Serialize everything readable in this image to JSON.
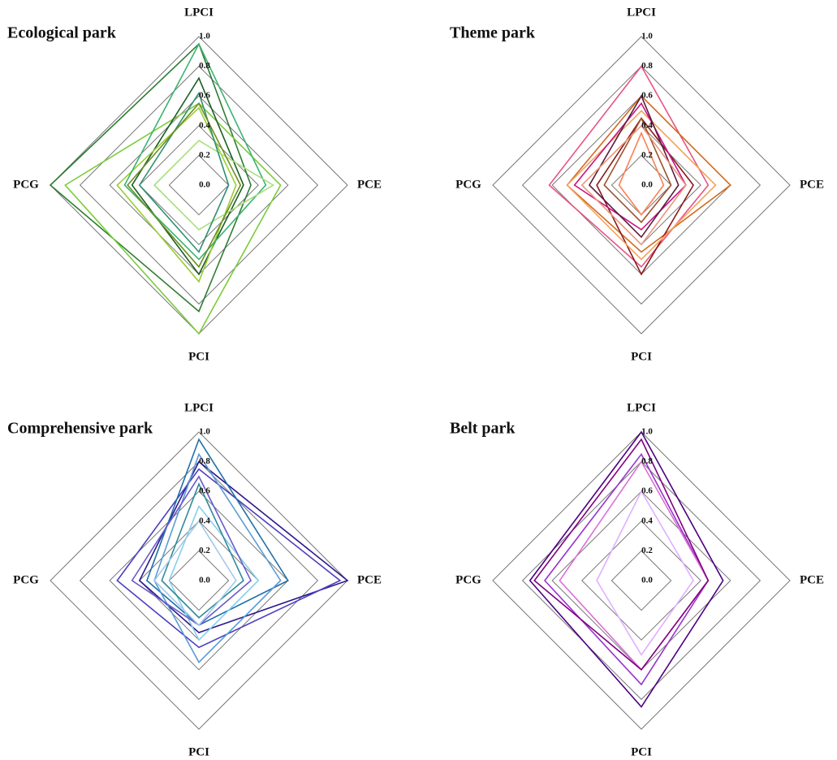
{
  "chart_data": [
    {
      "type": "radar",
      "title": "Ecological park",
      "categories": [
        "LPCI",
        "PCE",
        "PCI",
        "PCG"
      ],
      "rlim": [
        0,
        1
      ],
      "rticks": [
        {
          "value": 0,
          "label": "0.0"
        },
        0.2,
        0.4,
        0.6,
        0.8,
        {
          "value": 1,
          "label": "1.0"
        }
      ],
      "grid": true,
      "series": [
        {
          "color": "#2e7d32",
          "values": [
            0.95,
            0.35,
            0.85,
            1.0
          ]
        },
        {
          "color": "#7ccc3a",
          "values": [
            0.55,
            0.55,
            1.0,
            0.9
          ]
        },
        {
          "color": "#1b5e20",
          "values": [
            0.72,
            0.3,
            0.6,
            0.45
          ]
        },
        {
          "color": "#9acd32",
          "values": [
            0.52,
            0.25,
            0.65,
            0.55
          ]
        },
        {
          "color": "#3cb371",
          "values": [
            0.95,
            0.45,
            0.5,
            0.5
          ]
        },
        {
          "color": "#a6e07a",
          "values": [
            0.3,
            0.5,
            0.3,
            0.3
          ]
        },
        {
          "color": "#2f8f6f",
          "values": [
            0.62,
            0.2,
            0.45,
            0.4
          ]
        },
        {
          "color": "#6b8e23",
          "values": [
            0.55,
            0.28,
            0.55,
            0.48
          ]
        }
      ]
    },
    {
      "type": "radar",
      "title": "Theme park",
      "categories": [
        "LPCI",
        "PCE",
        "PCI",
        "PCG"
      ],
      "rlim": [
        0,
        1
      ],
      "rticks": [
        {
          "value": 0,
          "label": "0.0"
        },
        0.2,
        0.4,
        0.6,
        0.8,
        {
          "value": 1,
          "label": "1.0"
        }
      ],
      "grid": true,
      "series": [
        {
          "color": "#e75480",
          "values": [
            0.8,
            0.45,
            0.55,
            0.62
          ]
        },
        {
          "color": "#d2691e",
          "values": [
            0.6,
            0.6,
            0.45,
            0.5
          ]
        },
        {
          "color": "#8b1a1a",
          "values": [
            0.45,
            0.35,
            0.6,
            0.3
          ]
        },
        {
          "color": "#f4a460",
          "values": [
            0.5,
            0.5,
            0.5,
            0.5
          ]
        },
        {
          "color": "#c71585",
          "values": [
            0.55,
            0.3,
            0.3,
            0.45
          ]
        },
        {
          "color": "#a0522d",
          "values": [
            0.45,
            0.2,
            0.25,
            0.25
          ]
        },
        {
          "color": "#ff7f50",
          "values": [
            0.35,
            0.15,
            0.2,
            0.15
          ]
        },
        {
          "color": "#5a1e3c",
          "values": [
            0.6,
            0.25,
            0.35,
            0.35
          ]
        },
        {
          "color": "#e9967a",
          "values": [
            0.4,
            0.3,
            0.4,
            0.4
          ]
        }
      ]
    },
    {
      "type": "radar",
      "title": "Comprehensive park",
      "categories": [
        "LPCI",
        "PCE",
        "PCI",
        "PCG"
      ],
      "rlim": [
        0,
        1
      ],
      "rticks": [
        {
          "value": 0,
          "label": "0.0"
        },
        0.2,
        0.4,
        0.6,
        0.8,
        {
          "value": 1,
          "label": "1.0"
        }
      ],
      "grid": true,
      "series": [
        {
          "color": "#2b1a8c",
          "values": [
            0.8,
            1.0,
            0.35,
            0.4
          ]
        },
        {
          "color": "#4b3fbf",
          "values": [
            0.75,
            0.95,
            0.45,
            0.55
          ]
        },
        {
          "color": "#1f6fa8",
          "values": [
            0.95,
            0.6,
            0.3,
            0.35
          ]
        },
        {
          "color": "#5b9bd5",
          "values": [
            0.85,
            0.55,
            0.55,
            0.3
          ]
        },
        {
          "color": "#87ceeb",
          "values": [
            0.5,
            0.4,
            0.4,
            0.2
          ]
        },
        {
          "color": "#2e8b9a",
          "values": [
            0.65,
            0.3,
            0.25,
            0.25
          ]
        },
        {
          "color": "#6a5acd",
          "values": [
            0.7,
            0.35,
            0.3,
            0.45
          ]
        },
        {
          "color": "#a4c8e8",
          "values": [
            0.4,
            0.25,
            0.3,
            0.3
          ]
        }
      ]
    },
    {
      "type": "radar",
      "title": "Belt park",
      "categories": [
        "LPCI",
        "PCE",
        "PCI",
        "PCG"
      ],
      "rlim": [
        0,
        1
      ],
      "rticks": [
        {
          "value": 0,
          "label": "0.0"
        },
        0.2,
        0.4,
        0.6,
        0.8,
        {
          "value": 1,
          "label": "1.0"
        }
      ],
      "grid": true,
      "series": [
        {
          "color": "#4b0082",
          "values": [
            1.0,
            0.55,
            0.85,
            0.75
          ]
        },
        {
          "color": "#9932cc",
          "values": [
            0.85,
            0.45,
            0.7,
            0.65
          ]
        },
        {
          "color": "#da70d6",
          "values": [
            0.8,
            0.45,
            0.6,
            0.55
          ]
        },
        {
          "color": "#e0b0ff",
          "values": [
            0.6,
            0.35,
            0.5,
            0.3
          ]
        },
        {
          "color": "#800080",
          "values": [
            0.95,
            0.45,
            0.6,
            0.72
          ]
        }
      ]
    }
  ]
}
